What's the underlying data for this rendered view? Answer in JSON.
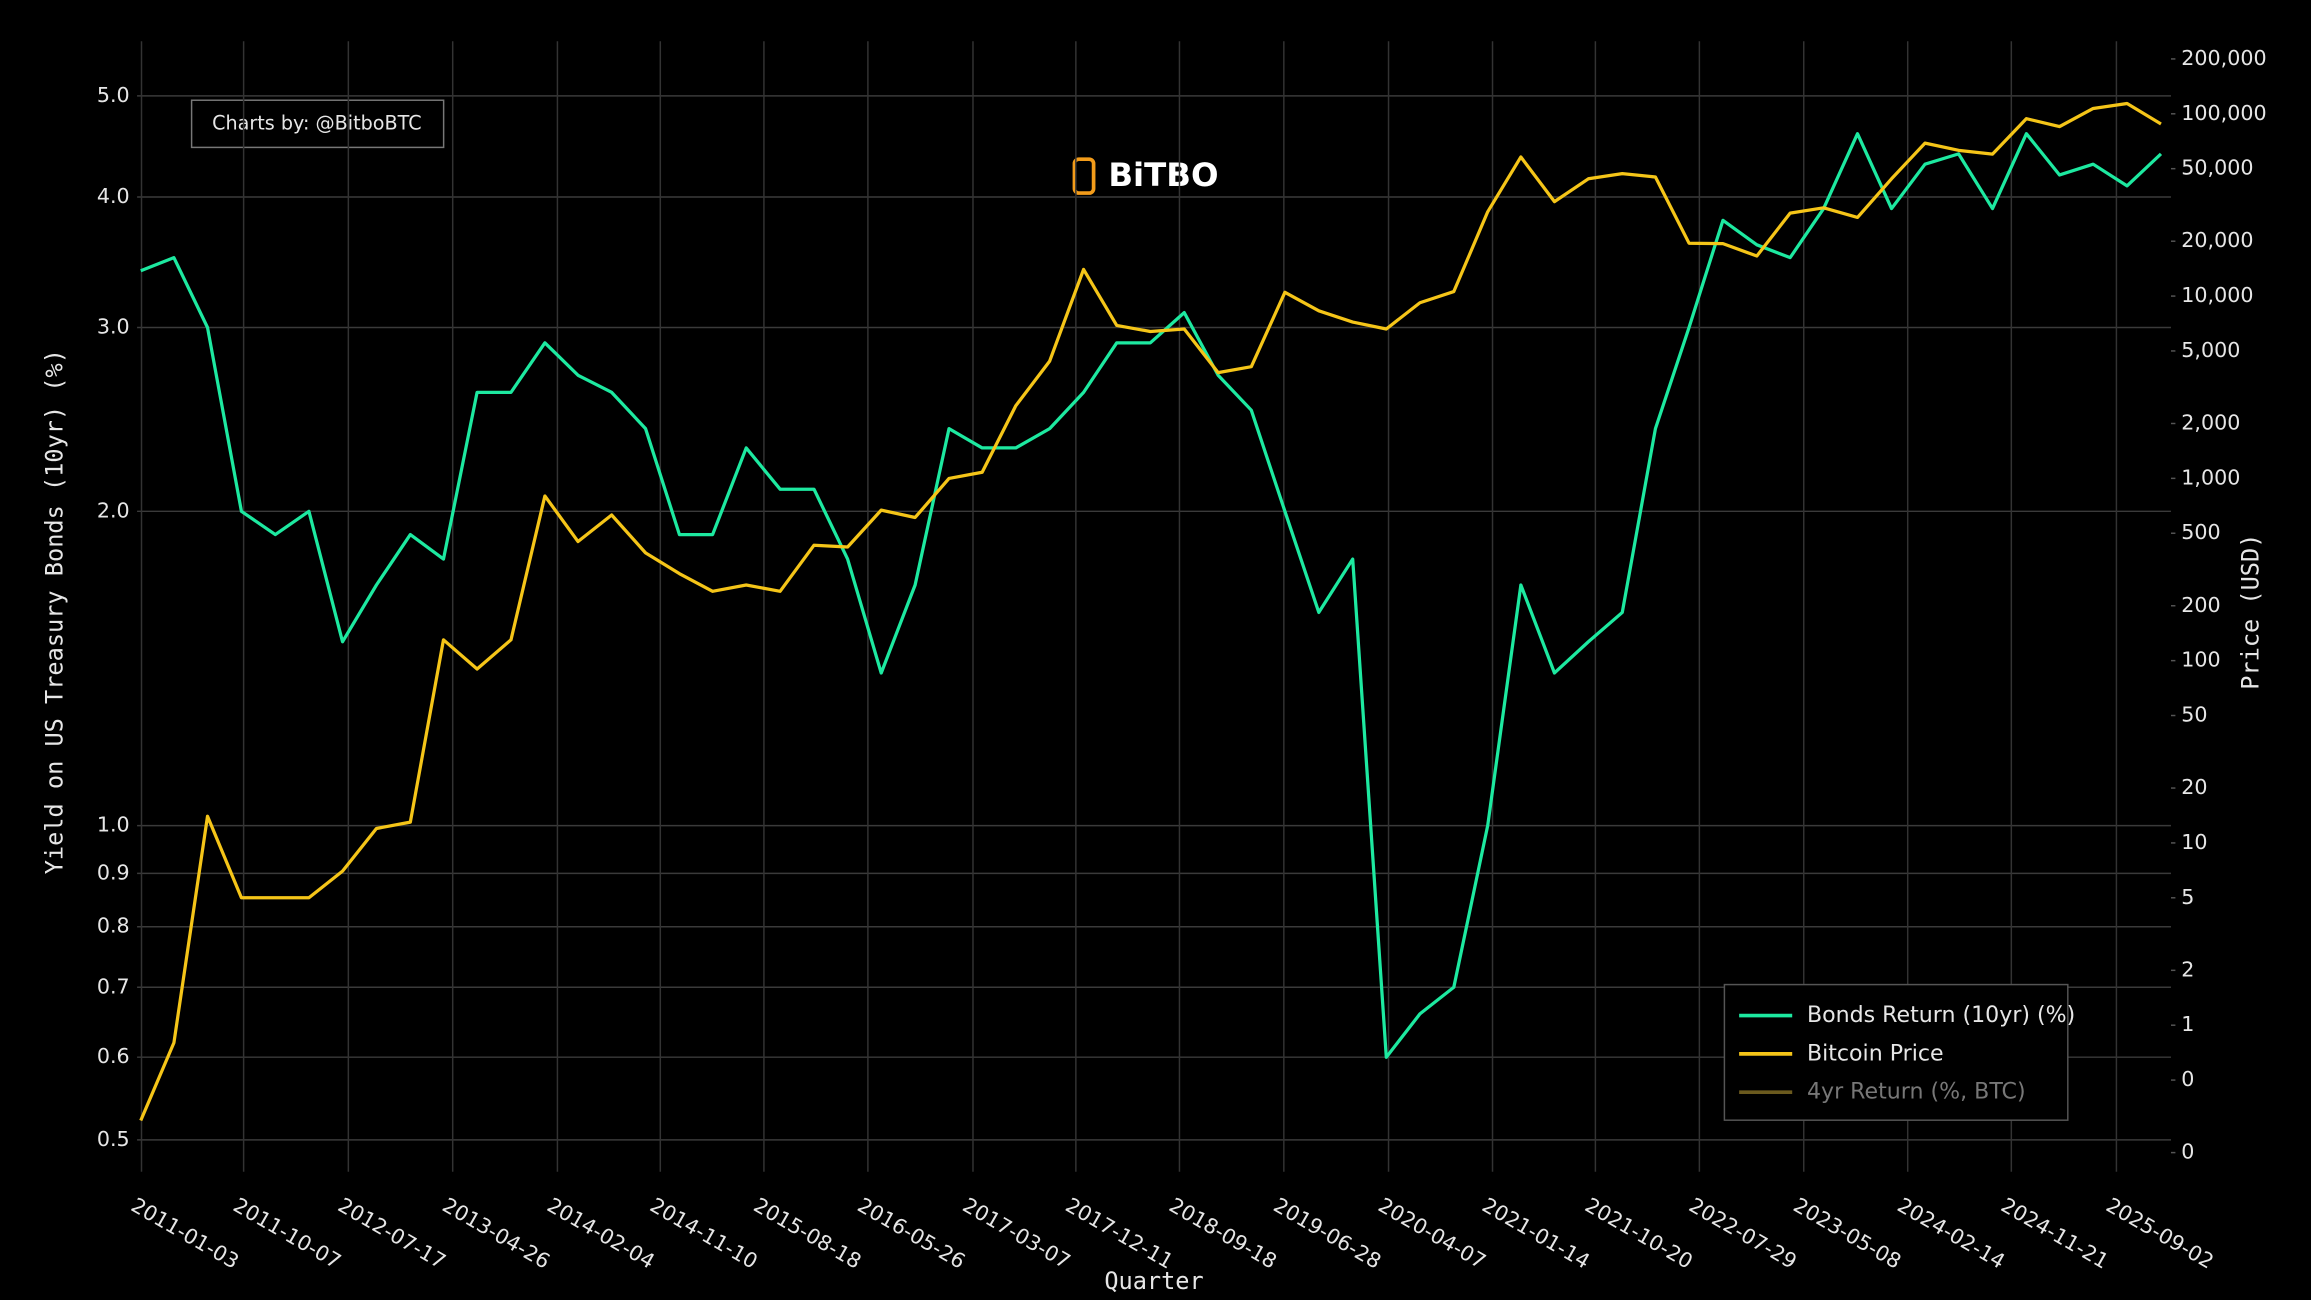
{
  "chart_data": {
    "type": "line",
    "credit": "Charts by: @BitboBTC",
    "watermark": "BiTBO",
    "x_label": "Quarter",
    "y_label": "Yield on US Treasury Bonds (10yr) (%)",
    "y2_label": "Price (USD)",
    "xlim": [
      "2010-12-22",
      "2026-01-28"
    ],
    "xticks": [
      "2011-01-03",
      "2011-10-07",
      "2012-07-17",
      "2013-04-26",
      "2014-02-04",
      "2014-11-10",
      "2015-08-18",
      "2016-05-26",
      "2017-03-07",
      "2017-12-11",
      "2018-09-18",
      "2019-06-28",
      "2020-04-07",
      "2021-01-14",
      "2021-10-20",
      "2022-07-29",
      "2023-05-08",
      "2024-02-14",
      "2024-11-21",
      "2025-09-02"
    ],
    "ylim": [
      0.466,
      5.64
    ],
    "log_y": true,
    "yticks": [
      0.5,
      0.6,
      0.7,
      0.8,
      0.9,
      {
        "value": 1,
        "label": "1.0"
      },
      {
        "value": 2,
        "label": "2.0"
      },
      {
        "value": 3,
        "label": "3.0"
      },
      {
        "value": 4,
        "label": "4.0"
      },
      {
        "value": 5,
        "label": "5.0"
      }
    ],
    "y2lim": [
      0.157,
      250000
    ],
    "log_y2": true,
    "y2ticks": [
      {
        "value": 0.2,
        "label": "0"
      },
      {
        "value": 0.5,
        "label": "0"
      },
      1,
      2,
      5,
      10,
      20,
      50,
      100,
      200,
      500,
      {
        "value": 1000,
        "label": "1,000"
      },
      {
        "value": 2000,
        "label": "2,000"
      },
      {
        "value": 5000,
        "label": "5,000"
      },
      {
        "value": 10000,
        "label": "10,000"
      },
      {
        "value": 20000,
        "label": "20,000"
      },
      {
        "value": 50000,
        "label": "50,000"
      },
      {
        "value": 100000,
        "label": "100,000"
      },
      {
        "value": 200000,
        "label": "200,000"
      }
    ],
    "grid": true,
    "legend_position": "lower right",
    "series": [
      {
        "name": "Bonds Return (10yr) (%)",
        "color": "#1de9a0",
        "x": [
          "2011-01-01",
          "2011-04-01",
          "2011-07-01",
          "2011-10-01",
          "2012-01-01",
          "2012-04-01",
          "2012-07-01",
          "2012-10-01",
          "2013-01-01",
          "2013-04-01",
          "2013-07-01",
          "2013-10-01",
          "2014-01-01",
          "2014-04-01",
          "2014-07-01",
          "2014-10-01",
          "2015-01-01",
          "2015-04-01",
          "2015-07-01",
          "2015-10-01",
          "2016-01-01",
          "2016-04-01",
          "2016-07-01",
          "2016-10-01",
          "2017-01-01",
          "2017-04-01",
          "2017-07-01",
          "2017-10-01",
          "2018-01-01",
          "2018-04-01",
          "2018-07-01",
          "2018-10-01",
          "2019-01-01",
          "2019-04-01",
          "2019-07-01",
          "2019-10-01",
          "2020-01-01",
          "2020-04-01",
          "2020-07-01",
          "2020-10-01",
          "2021-01-01",
          "2021-04-01",
          "2021-07-01",
          "2021-10-01",
          "2022-01-01",
          "2022-04-01",
          "2022-07-01",
          "2022-10-01",
          "2023-01-01",
          "2023-04-01",
          "2023-07-01",
          "2023-10-01",
          "2024-01-01",
          "2024-04-01",
          "2024-07-01",
          "2024-10-01",
          "2025-01-01",
          "2025-04-01",
          "2025-07-01",
          "2025-10-01",
          "2026-01-01"
        ],
        "values": [
          3.4,
          3.5,
          3.0,
          2.0,
          1.9,
          2.0,
          1.5,
          1.7,
          1.9,
          1.8,
          2.6,
          2.6,
          2.9,
          2.7,
          2.6,
          2.4,
          1.9,
          1.9,
          2.3,
          2.1,
          2.1,
          1.8,
          1.4,
          1.7,
          2.4,
          2.3,
          2.3,
          2.4,
          2.6,
          2.9,
          2.9,
          3.1,
          2.7,
          2.5,
          2.0,
          1.6,
          1.8,
          0.6,
          0.66,
          0.7,
          1.0,
          1.7,
          1.4,
          1.5,
          1.6,
          2.4,
          3.0,
          3.8,
          3.6,
          3.5,
          3.9,
          4.6,
          3.9,
          4.3,
          4.4,
          3.9,
          4.6,
          4.2,
          4.3,
          4.1,
          4.4
        ]
      },
      {
        "name": "Bitcoin Price",
        "color": "#f5c518",
        "axis": "y2",
        "x": [
          "2011-01-01",
          "2011-04-01",
          "2011-07-01",
          "2011-10-01",
          "2012-01-01",
          "2012-04-01",
          "2012-07-01",
          "2012-10-01",
          "2013-01-01",
          "2013-04-01",
          "2013-07-01",
          "2013-10-01",
          "2014-01-01",
          "2014-04-01",
          "2014-07-01",
          "2014-10-01",
          "2015-01-01",
          "2015-04-01",
          "2015-07-01",
          "2015-10-01",
          "2016-01-01",
          "2016-04-01",
          "2016-07-01",
          "2016-10-01",
          "2017-01-01",
          "2017-04-01",
          "2017-07-01",
          "2017-10-01",
          "2018-01-01",
          "2018-04-01",
          "2018-07-01",
          "2018-10-01",
          "2019-01-01",
          "2019-04-01",
          "2019-07-01",
          "2019-10-01",
          "2020-01-01",
          "2020-04-01",
          "2020-07-01",
          "2020-10-01",
          "2021-01-01",
          "2021-04-01",
          "2021-07-01",
          "2021-10-01",
          "2022-01-01",
          "2022-04-01",
          "2022-07-01",
          "2022-10-01",
          "2023-01-01",
          "2023-04-01",
          "2023-07-01",
          "2023-10-01",
          "2024-01-01",
          "2024-04-01",
          "2024-07-01",
          "2024-10-01",
          "2025-01-01",
          "2025-04-01",
          "2025-07-01",
          "2025-10-01",
          "2026-01-01"
        ],
        "values": [
          0.3,
          0.8,
          14,
          5,
          5,
          5,
          7,
          12,
          13,
          130,
          90,
          130,
          800,
          450,
          630,
          390,
          300,
          240,
          260,
          240,
          430,
          420,
          670,
          610,
          1000,
          1080,
          2500,
          4400,
          14000,
          6900,
          6400,
          6600,
          3800,
          4100,
          10500,
          8300,
          7200,
          6600,
          9200,
          10600,
          29000,
          58000,
          33000,
          44000,
          47000,
          45000,
          19500,
          19400,
          16600,
          28500,
          30500,
          27000,
          44000,
          69000,
          63000,
          60000,
          94000,
          85000,
          107000,
          114000,
          88000
        ]
      },
      {
        "name": "4yr Return (%, BTC)",
        "color": "#6b5a1e",
        "axis": "y2",
        "x": [],
        "values": []
      }
    ]
  }
}
